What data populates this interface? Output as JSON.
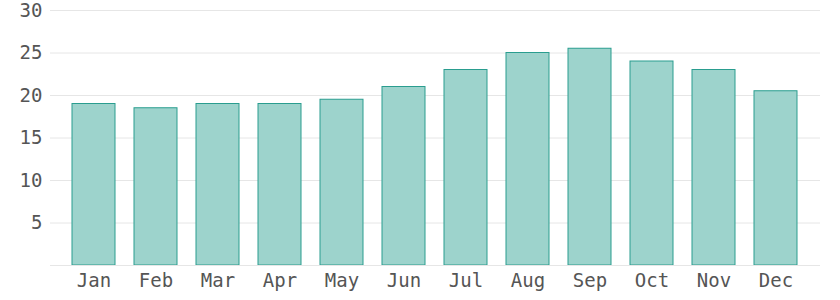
{
  "chart_data": {
    "type": "bar",
    "categories": [
      "Jan",
      "Feb",
      "Mar",
      "Apr",
      "May",
      "Jun",
      "Jul",
      "Aug",
      "Sep",
      "Oct",
      "Nov",
      "Dec"
    ],
    "values": [
      19,
      18.5,
      19,
      19,
      19.5,
      21,
      23,
      25,
      25.5,
      24,
      23,
      20.5
    ],
    "color": "#9dd3cc",
    "ylim": [
      0,
      30
    ],
    "yticks": [
      5,
      10,
      15,
      20,
      25,
      30
    ],
    "grid": true
  }
}
